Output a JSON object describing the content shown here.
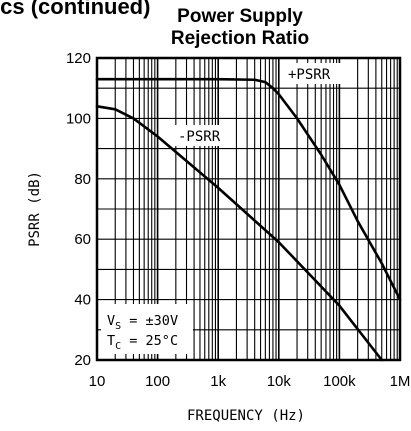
{
  "header_fragment": "ics (continued)",
  "chart_data": {
    "type": "line",
    "title_lines": [
      "Power Supply",
      "Rejection Ratio"
    ],
    "xlabel": "FREQUENCY (Hz)",
    "ylabel": "PSRR (dB)",
    "x_scale": "log",
    "xlim": [
      10,
      1000000
    ],
    "ylim": [
      20,
      120
    ],
    "x_ticks": [
      10,
      100,
      1000,
      10000,
      100000,
      1000000
    ],
    "x_tick_labels": [
      "10",
      "100",
      "1k",
      "10k",
      "100k",
      "1M"
    ],
    "y_ticks": [
      20,
      40,
      60,
      80,
      100,
      120
    ],
    "y_tick_labels": [
      "20",
      "40",
      "60",
      "80",
      "100",
      "120"
    ],
    "y_minor_step": 10,
    "grid": true,
    "series": [
      {
        "name": "+PSRR",
        "x": [
          10,
          100,
          1000,
          4000,
          6000,
          8000,
          10000,
          20000,
          50000,
          100000,
          200000,
          500000,
          1000000
        ],
        "y": [
          113,
          113,
          113,
          112.8,
          112,
          110,
          108,
          100,
          88,
          78,
          66,
          52,
          40
        ]
      },
      {
        "name": "-PSRR",
        "x": [
          10,
          20,
          40,
          100,
          1000,
          10000,
          100000,
          500000
        ],
        "y": [
          104,
          103,
          100,
          94,
          77,
          59,
          38,
          20
        ]
      }
    ],
    "annotation": {
      "vs_label": "V",
      "vs_sub": "S",
      "vs_value": " = ±30V",
      "tc_label": "T",
      "tc_sub": "C",
      "tc_value": " = 25°C"
    }
  }
}
